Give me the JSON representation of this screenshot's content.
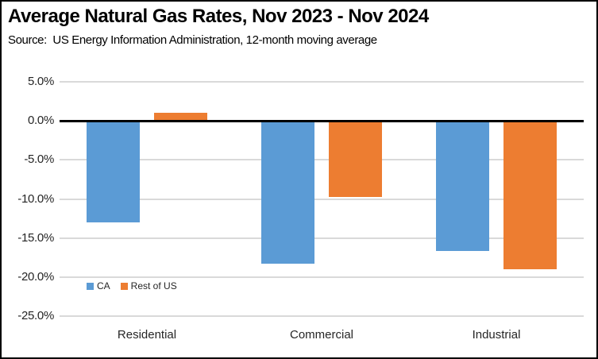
{
  "header": {
    "title": "Average Natural Gas Rates, Nov 2023 - Nov 2024",
    "subtitle": "Source:  US Energy Information Administration, 12-month moving average"
  },
  "chart_data": {
    "type": "bar",
    "categories": [
      "Residential",
      "Commercial",
      "Industrial"
    ],
    "series": [
      {
        "name": "CA",
        "color": "#5B9BD5",
        "values": [
          -13.0,
          -18.3,
          -16.7
        ]
      },
      {
        "name": "Rest of US",
        "color": "#ED7D31",
        "values": [
          1.0,
          -9.7,
          -19.0
        ]
      }
    ],
    "title": "Average Natural Gas Rates, Nov 2023 - Nov 2024",
    "xlabel": "",
    "ylabel": "",
    "ylim": [
      -25,
      5
    ],
    "y_ticks": [
      5,
      0,
      -5,
      -10,
      -15,
      -20,
      -25
    ],
    "y_tick_labels": [
      "5.0%",
      "0.0%",
      "-5.0%",
      "-10.0%",
      "-15.0%",
      "-20.0%",
      "-25.0%"
    ],
    "grid": true,
    "zero_line": true,
    "legend_position": "bottom-left-inside"
  },
  "colors": {
    "gridline": "#D9D9D9",
    "zero_line": "#000000",
    "border": "#000000",
    "background": "#FFFFFF",
    "axis_text": "#262626"
  }
}
